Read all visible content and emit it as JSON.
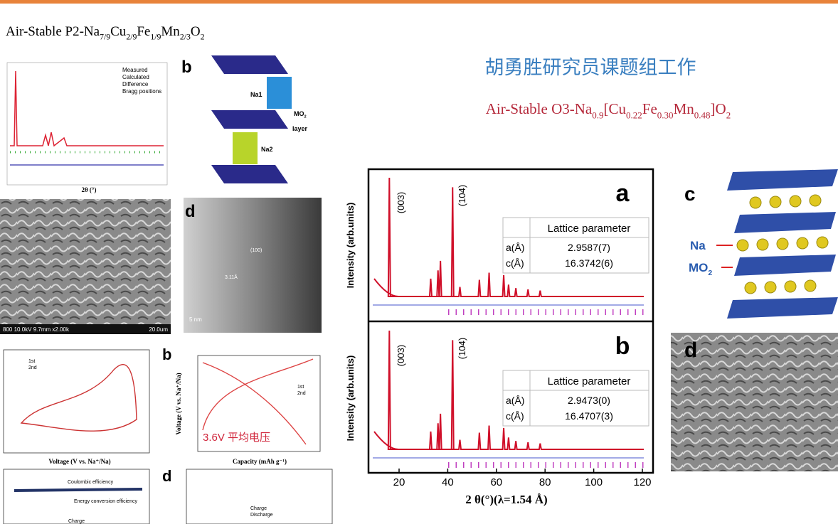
{
  "left_title": [
    "Air-Stable P2-Na",
    "7/9",
    "Cu",
    "2/9",
    "Fe",
    "1/9",
    "Mn",
    "2/3",
    "O",
    "2"
  ],
  "header_title": "胡勇胜研究员课题组工作",
  "subtitle": [
    "Air-Stable  O3-Na",
    "0.9",
    "[Cu",
    "0.22",
    "Fe",
    "0.30",
    "Mn",
    "0.48",
    "]O",
    "2"
  ],
  "left_panels": {
    "xrd_legend": [
      "Measured",
      "Calculated",
      "Difference",
      "Bragg positions"
    ],
    "xrd_x_label": "2θ (°)",
    "structure_letter": "b",
    "structure_labels": {
      "na1": "Na1",
      "na2": "Na2",
      "mo2": [
        "MO",
        "2"
      ],
      "layer": "layer"
    },
    "sem_caption": "800 10.0kV 9.7mm x2.00k",
    "sem_scale": "20.0um",
    "tem_letter": "d",
    "tem_labels": [
      "(100)",
      "3.11Å",
      "5 nm"
    ],
    "cv_legend": [
      "1st",
      "2nd"
    ],
    "cv_x_label": "Voltage (V vs. Na⁺/Na)",
    "charge_letter": "b",
    "charge_legend": [
      "1st",
      "2nd"
    ],
    "charge_y_label": "Voltage (V vs. Na⁺/Na)",
    "charge_x_label": "Capacity (mAh g⁻¹)",
    "charge_note": "3.6V 平均电压",
    "cycle_labels": [
      "Coulombic efficiency",
      "Energy conversion efficiency",
      "Charge"
    ],
    "rate_letter": "d",
    "rate_legend": [
      "Charge",
      "Discharge"
    ]
  },
  "xrd": {
    "y_label": "Intensity (arb.units)",
    "x_label": "2 θ(°)(λ=1.54 Å)",
    "x_ticks": [
      "20",
      "40",
      "60",
      "80",
      "100",
      "120"
    ],
    "panels": [
      {
        "letter": "a",
        "peaks": [
          "(003)",
          "(104)"
        ],
        "table": {
          "header": "Lattice parameter",
          "rows": [
            [
              "a(Å)",
              "2.9587(7)"
            ],
            [
              "c(Å)",
              "16.3742(6)"
            ]
          ]
        }
      },
      {
        "letter": "b",
        "peaks": [
          "(003)",
          "(104)"
        ],
        "table": {
          "header": "Lattice parameter",
          "rows": [
            [
              "a(Å)",
              "2.9473(0)"
            ],
            [
              "c(Å)",
              "16.4707(3)"
            ]
          ]
        }
      }
    ]
  },
  "structure": {
    "letter": "c",
    "na": "Na",
    "mo2": [
      "MO",
      "2"
    ]
  },
  "sem_letter": "d"
}
